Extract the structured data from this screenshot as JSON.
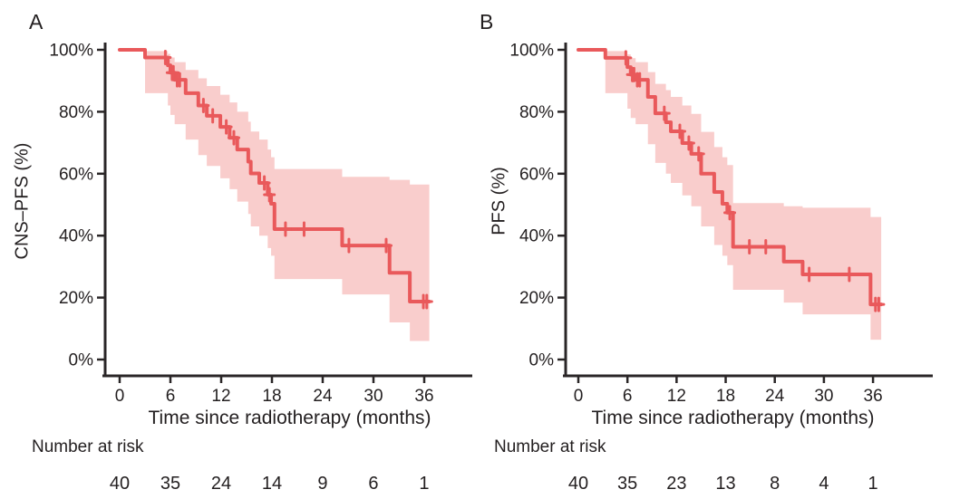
{
  "colors": {
    "curve": "#e9595b",
    "ci_band": "#f9cdcc",
    "axis": "#2a2627",
    "text": "#231f20"
  },
  "chart_data": [
    {
      "type": "line",
      "subtype": "kaplan-meier-step-curve-with-ci-band",
      "panel_label": "A",
      "ylabel": "CNS–PFS (%)",
      "xlabel": "Time since radiotherapy (months)",
      "xlim": [
        0,
        38
      ],
      "ylim": [
        0,
        100
      ],
      "x_axis": {
        "ticks": [
          {
            "t": 0,
            "label": "0"
          },
          {
            "t": 6,
            "label": "6"
          },
          {
            "t": 12,
            "label": "12"
          },
          {
            "t": 18,
            "label": "18"
          },
          {
            "t": 24,
            "label": "24"
          },
          {
            "t": 30,
            "label": "30"
          },
          {
            "t": 36,
            "label": "36"
          }
        ]
      },
      "y_axis": {
        "ticks": [
          {
            "pct": 0,
            "label": "0%"
          },
          {
            "pct": 20,
            "label": "20%"
          },
          {
            "pct": 40,
            "label": "40%"
          },
          {
            "pct": 60,
            "label": "60%"
          },
          {
            "pct": 80,
            "label": "80%"
          },
          {
            "pct": 100,
            "label": "100%"
          }
        ]
      },
      "steps": [
        {
          "t": 0,
          "s": 100,
          "lo": 100,
          "up": 100
        },
        {
          "t": 3.0,
          "s": 97.5,
          "lo": 86,
          "up": 99.6
        },
        {
          "t": 5.7,
          "s": 95.0,
          "lo": 82,
          "up": 98.7
        },
        {
          "t": 6.0,
          "s": 92.6,
          "lo": 79,
          "up": 97.5
        },
        {
          "t": 6.5,
          "s": 90.3,
          "lo": 76,
          "up": 96.0
        },
        {
          "t": 7.8,
          "s": 86.0,
          "lo": 71,
          "up": 93.5
        },
        {
          "t": 9.3,
          "s": 82.0,
          "lo": 66,
          "up": 90.8
        },
        {
          "t": 10.3,
          "s": 78.7,
          "lo": 62.5,
          "up": 88.3
        },
        {
          "t": 11.9,
          "s": 75.1,
          "lo": 58.5,
          "up": 85.5
        },
        {
          "t": 13.0,
          "s": 71.6,
          "lo": 55,
          "up": 83.0
        },
        {
          "t": 13.9,
          "s": 67.8,
          "lo": 51,
          "up": 80.0
        },
        {
          "t": 15.2,
          "s": 63.9,
          "lo": 47,
          "up": 76.8
        },
        {
          "t": 15.5,
          "s": 60.1,
          "lo": 43,
          "up": 73.6
        },
        {
          "t": 16.5,
          "s": 57.0,
          "lo": 40,
          "up": 71.0
        },
        {
          "t": 17.5,
          "s": 53.2,
          "lo": 36,
          "up": 67.8
        },
        {
          "t": 17.9,
          "s": 50.3,
          "lo": 33.5,
          "up": 65.3
        },
        {
          "t": 18.3,
          "s": 42.1,
          "lo": 26,
          "up": 61.5
        },
        {
          "t": 26.3,
          "s": 36.8,
          "lo": 21,
          "up": 59.0
        },
        {
          "t": 31.9,
          "s": 28.0,
          "lo": 12,
          "up": 58.0
        },
        {
          "t": 34.3,
          "s": 18.7,
          "lo": 6,
          "up": 56.5
        }
      ],
      "end_time": 36.6,
      "censor_marks": [
        [
          5.4,
          97.5
        ],
        [
          6.2,
          92.6
        ],
        [
          6.35,
          92.6
        ],
        [
          6.8,
          90.3
        ],
        [
          7.1,
          90.3
        ],
        [
          9.9,
          82.0
        ],
        [
          11.0,
          78.7
        ],
        [
          12.6,
          75.1
        ],
        [
          13.5,
          71.6
        ],
        [
          17.1,
          57.0
        ],
        [
          17.7,
          53.2
        ],
        [
          19.6,
          42.1
        ],
        [
          21.8,
          42.1
        ],
        [
          27.1,
          36.8
        ],
        [
          31.5,
          36.8
        ],
        [
          35.9,
          18.7
        ],
        [
          36.3,
          18.7
        ]
      ],
      "number_at_risk": {
        "label": "Number at risk",
        "times": [
          0,
          6,
          12,
          18,
          24,
          30,
          36
        ],
        "values": [
          40,
          35,
          24,
          14,
          9,
          6,
          1
        ]
      }
    },
    {
      "type": "line",
      "subtype": "kaplan-meier-step-curve-with-ci-band",
      "panel_label": "B",
      "ylabel": "PFS (%)",
      "xlabel": "Time since radiotherapy (months)",
      "xlim": [
        0,
        38
      ],
      "ylim": [
        0,
        100
      ],
      "x_axis": {
        "ticks": [
          {
            "t": 0,
            "label": "0"
          },
          {
            "t": 6,
            "label": "6"
          },
          {
            "t": 12,
            "label": "12"
          },
          {
            "t": 18,
            "label": "18"
          },
          {
            "t": 24,
            "label": "24"
          },
          {
            "t": 30,
            "label": "30"
          },
          {
            "t": 36,
            "label": "36"
          }
        ]
      },
      "y_axis": {
        "ticks": [
          {
            "pct": 0,
            "label": "0%"
          },
          {
            "pct": 20,
            "label": "20%"
          },
          {
            "pct": 40,
            "label": "40%"
          },
          {
            "pct": 60,
            "label": "60%"
          },
          {
            "pct": 80,
            "label": "80%"
          },
          {
            "pct": 100,
            "label": "100%"
          }
        ]
      },
      "steps": [
        {
          "t": 0,
          "s": 100,
          "lo": 100,
          "up": 100
        },
        {
          "t": 3.3,
          "s": 97.4,
          "lo": 86,
          "up": 99.6
        },
        {
          "t": 6.0,
          "s": 94.4,
          "lo": 81,
          "up": 98.5
        },
        {
          "t": 6.4,
          "s": 92.0,
          "lo": 78,
          "up": 97.3
        },
        {
          "t": 7.0,
          "s": 90.3,
          "lo": 76,
          "up": 96.0
        },
        {
          "t": 8.5,
          "s": 84.8,
          "lo": 69.5,
          "up": 92.8
        },
        {
          "t": 9.4,
          "s": 79.5,
          "lo": 63.5,
          "up": 89.0
        },
        {
          "t": 10.7,
          "s": 76.6,
          "lo": 60,
          "up": 87.0
        },
        {
          "t": 11.3,
          "s": 73.7,
          "lo": 57,
          "up": 84.8
        },
        {
          "t": 12.7,
          "s": 69.9,
          "lo": 53,
          "up": 82.0
        },
        {
          "t": 13.8,
          "s": 66.4,
          "lo": 49.5,
          "up": 79.3
        },
        {
          "t": 15.0,
          "s": 60.0,
          "lo": 43,
          "up": 73.5
        },
        {
          "t": 16.6,
          "s": 54.1,
          "lo": 37,
          "up": 68.6
        },
        {
          "t": 17.6,
          "s": 50.3,
          "lo": 33.5,
          "up": 65.3
        },
        {
          "t": 18.2,
          "s": 47.4,
          "lo": 30.5,
          "up": 62.8
        },
        {
          "t": 18.9,
          "s": 36.4,
          "lo": 22.5,
          "up": 50.5
        },
        {
          "t": 25.1,
          "s": 31.6,
          "lo": 18.4,
          "up": 49.5
        },
        {
          "t": 27.4,
          "s": 27.5,
          "lo": 14.6,
          "up": 49.0
        },
        {
          "t": 35.7,
          "s": 17.8,
          "lo": 6.4,
          "up": 46.0
        }
      ],
      "end_time": 37.0,
      "censor_marks": [
        [
          5.8,
          97.4
        ],
        [
          6.6,
          92.0
        ],
        [
          6.8,
          92.0
        ],
        [
          7.2,
          90.3
        ],
        [
          7.5,
          90.3
        ],
        [
          10.5,
          79.5
        ],
        [
          12.4,
          73.7
        ],
        [
          13.5,
          69.9
        ],
        [
          14.7,
          66.4
        ],
        [
          18.5,
          47.4
        ],
        [
          20.9,
          36.4
        ],
        [
          22.9,
          36.4
        ],
        [
          28.2,
          27.5
        ],
        [
          33.1,
          27.5
        ],
        [
          36.3,
          17.8
        ],
        [
          36.7,
          17.8
        ]
      ],
      "number_at_risk": {
        "label": "Number at risk",
        "times": [
          0,
          6,
          12,
          18,
          24,
          30,
          36
        ],
        "values": [
          40,
          35,
          23,
          13,
          8,
          4,
          1
        ]
      }
    }
  ]
}
